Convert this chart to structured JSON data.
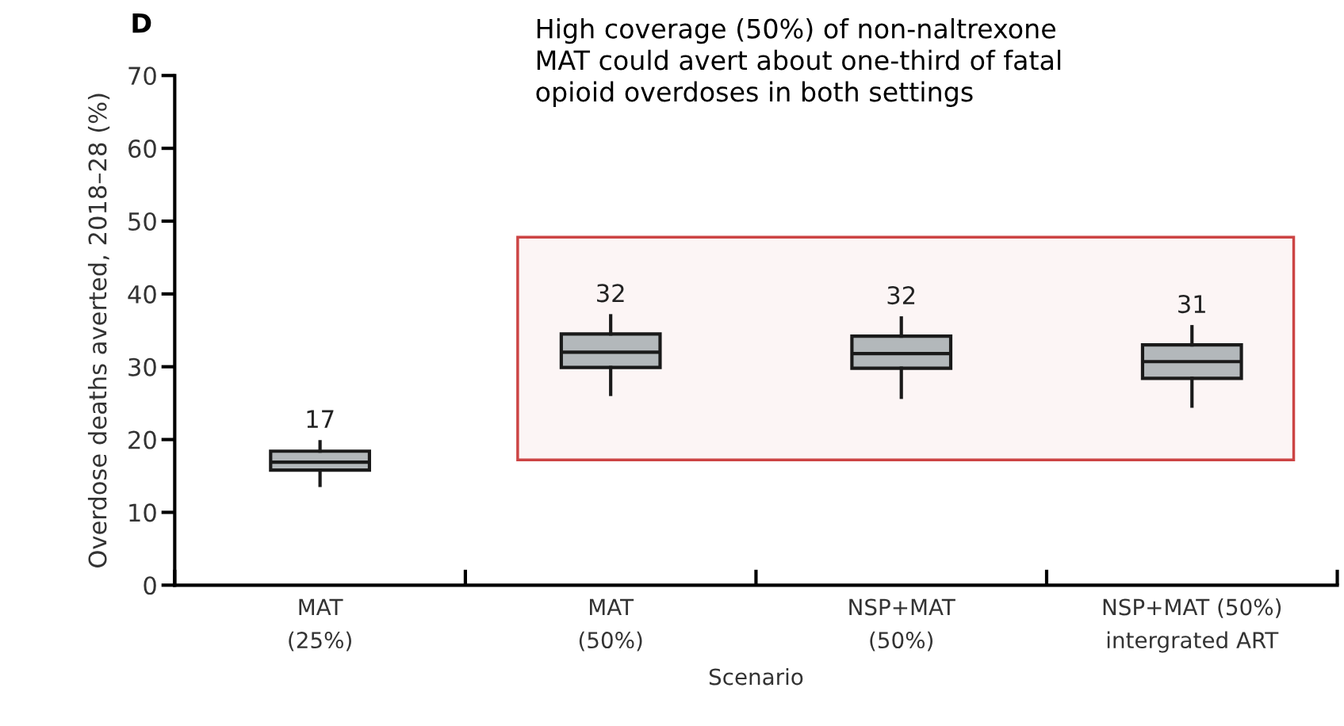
{
  "chart_data": {
    "type": "box",
    "title": "D",
    "xlabel": "Scenario",
    "ylabel": "Overdose deaths averted, 2018–28 (%)",
    "categories": [
      "MAT\n(25%)",
      "MAT\n(50%)",
      "NSP+MAT\n(50%)",
      "NSP+MAT (50%)\nintergrated ART"
    ],
    "boxes": [
      {
        "low": 13.7,
        "q1": 15.8,
        "median": 16.9,
        "q3": 18.4,
        "high": 19.7
      },
      {
        "low": 26.2,
        "q1": 29.9,
        "median": 32.0,
        "q3": 34.5,
        "high": 37.0
      },
      {
        "low": 25.8,
        "q1": 29.8,
        "median": 31.8,
        "q3": 34.2,
        "high": 36.7
      },
      {
        "low": 24.6,
        "q1": 28.4,
        "median": 30.7,
        "q3": 33.0,
        "high": 35.5
      }
    ],
    "color": "#b3b8bb",
    "value_labels": [
      "17",
      "32",
      "32",
      "31"
    ],
    "bands": [
      {
        "axis": "y",
        "from": 17.2,
        "to": 47.8,
        "color": "#cc4444"
      }
    ],
    "ylim": [
      0,
      70
    ],
    "yticks": [
      0,
      10,
      20,
      30,
      40,
      50,
      60,
      70
    ],
    "grid": false,
    "annotations": [
      "High coverage (50%) of non-naltrexone\nMAT could avert about one-third of fatal\nopioid overdoses in both settings"
    ]
  }
}
